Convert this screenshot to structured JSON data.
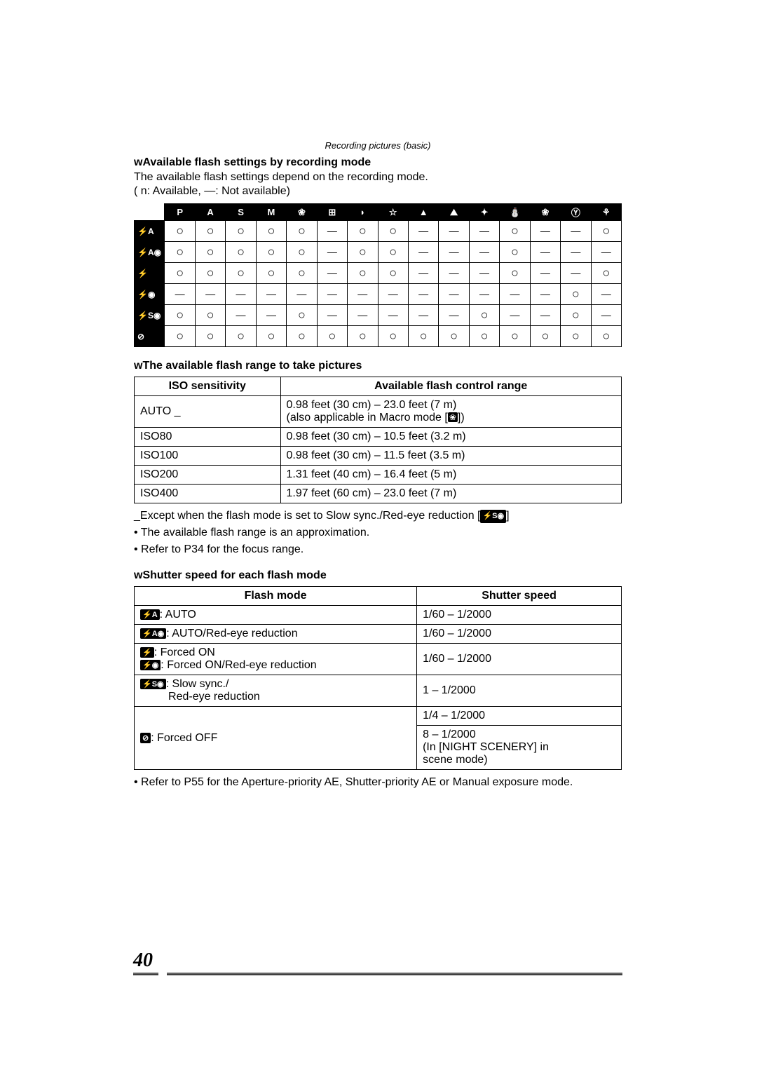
{
  "header": "Recording pictures (basic)",
  "section1": {
    "title": "wAvailable flash settings by recording mode",
    "intro": "The available flash settings depend on the recording mode.",
    "legend": "( n:  Available,  —:  Not available)",
    "col_headers": [
      "P",
      "A",
      "S",
      "M",
      "❀",
      "⊞",
      "◗",
      "☆",
      "▲",
      "⛰",
      "✦",
      "⛄",
      "❀",
      "Ⓨ",
      "⚘"
    ],
    "row_headers": [
      "⚡A",
      "⚡A◉",
      "⚡",
      "⚡◉",
      "⚡S◉",
      "⊘"
    ],
    "cells": [
      [
        "○",
        "○",
        "○",
        "○",
        "○",
        "—",
        "○",
        "○",
        "—",
        "—",
        "—",
        "○",
        "—",
        "—",
        "○"
      ],
      [
        "○",
        "○",
        "○",
        "○",
        "○",
        "—",
        "○",
        "○",
        "—",
        "—",
        "—",
        "○",
        "—",
        "—",
        "—"
      ],
      [
        "○",
        "○",
        "○",
        "○",
        "○",
        "—",
        "○",
        "○",
        "—",
        "—",
        "—",
        "○",
        "—",
        "—",
        "○"
      ],
      [
        "—",
        "—",
        "—",
        "—",
        "—",
        "—",
        "—",
        "—",
        "—",
        "—",
        "—",
        "—",
        "—",
        "○",
        "—"
      ],
      [
        "○",
        "○",
        "—",
        "—",
        "○",
        "—",
        "—",
        "—",
        "—",
        "—",
        "○",
        "—",
        "—",
        "○",
        "—"
      ],
      [
        "○",
        "○",
        "○",
        "○",
        "○",
        "○",
        "○",
        "○",
        "○",
        "○",
        "○",
        "○",
        "○",
        "○",
        "○"
      ]
    ]
  },
  "section2": {
    "title": "wThe available flash range to take pictures",
    "col1_header": "ISO sensitivity",
    "col2_header": "Available flash control range",
    "rows": [
      {
        "iso": "AUTO _",
        "range": "0.98 feet (30 cm) – 23.0 feet (7 m)",
        "extra": "(also applicable in Macro mode [",
        "extra_icon": "❀",
        "extra_end": "])"
      },
      {
        "iso": "ISO80",
        "range": "0.98 feet (30 cm) – 10.5 feet (3.2 m)"
      },
      {
        "iso": "ISO100",
        "range": "0.98 feet (30 cm) – 11.5 feet (3.5 m)"
      },
      {
        "iso": "ISO200",
        "range": "1.31 feet (40 cm) – 16.4 feet (5 m)"
      },
      {
        "iso": "ISO400",
        "range": "1.97 feet (60 cm) – 23.0 feet (7 m)"
      }
    ],
    "footnote_prefix": "_Except when the flash mode is set to Slow sync./Red-eye reduction [",
    "footnote_icon": "⚡S◉",
    "footnote_suffix": "]",
    "bullet1": "• The available flash range is an approximation.",
    "bullet2": "• Refer to P34 for the focus range."
  },
  "section3": {
    "title": "wShutter speed for each flash mode",
    "col1_header": "Flash mode",
    "col2_header": "Shutter speed",
    "rows": [
      {
        "icon": "⚡A",
        "label": ":  AUTO",
        "speed": "1/60 – 1/2000"
      },
      {
        "icon": "⚡A◉",
        "label": ":  AUTO/Red-eye reduction",
        "speed": "1/60 – 1/2000"
      },
      {
        "icon1": "⚡",
        "label1": ":  Forced ON",
        "icon2": "⚡◉",
        "label2": ":  Forced ON/Red-eye reduction",
        "speed": "1/60 – 1/2000",
        "two_line": true
      },
      {
        "icon": "⚡S◉",
        "label": ":  Slow sync./",
        "label_cont": "   Red-eye reduction",
        "speed": "1 – 1/2000"
      },
      {
        "icon": "⊘",
        "label": ":  Forced OFF",
        "speed1": "1/4 – 1/2000",
        "speed2": "8 – 1/2000",
        "speed2_extra1": "(In [NIGHT SCENERY] in",
        "speed2_extra2": "scene mode)",
        "forced_off": true
      }
    ],
    "footnote": "• Refer to P55 for the Aperture-priority AE, Shutter-priority AE or Manual exposure mode."
  },
  "page_number": "40"
}
